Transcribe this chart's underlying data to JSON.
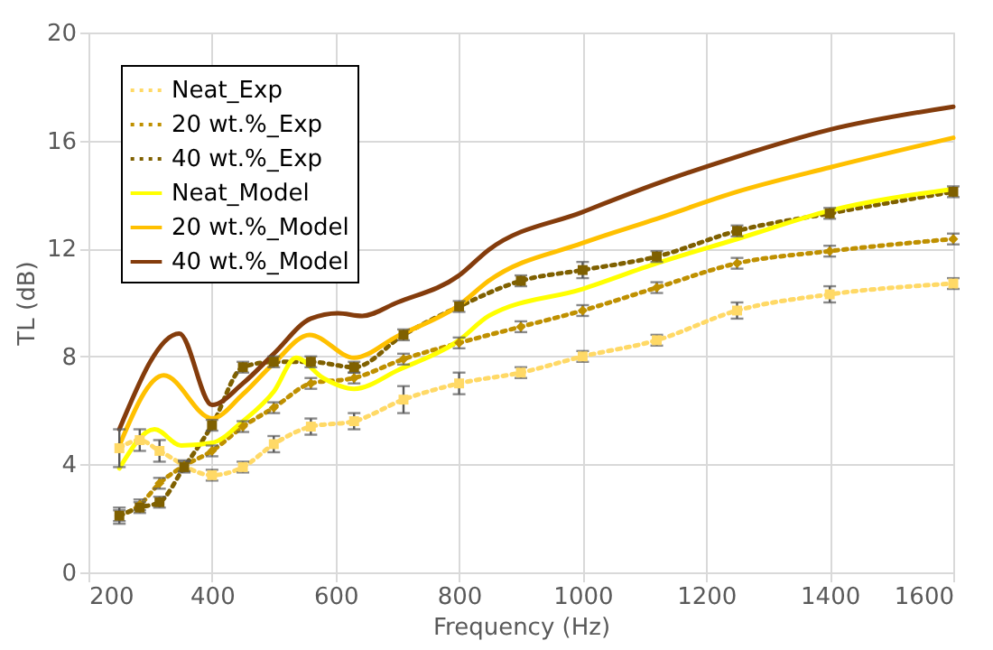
{
  "chart_data": {
    "type": "line",
    "xlabel": "Frequency (Hz)",
    "ylabel": "TL (dB)",
    "xlim": [
      200,
      1600
    ],
    "xticks": [
      200,
      400,
      600,
      800,
      1000,
      1200,
      1400,
      1600
    ],
    "ylim": [
      0,
      20
    ],
    "yticks": [
      0,
      4,
      8,
      12,
      16,
      20
    ],
    "grid": true,
    "legend": "top left",
    "series": [
      {
        "name": "Neat_Exp",
        "color": "#ffd966",
        "line_style": "dotted",
        "marker": "square",
        "x": [
          250,
          283,
          315,
          400,
          450,
          500,
          560,
          630,
          710,
          800,
          900,
          1000,
          1120,
          1250,
          1400,
          1600
        ],
        "values": [
          4.6,
          4.9,
          4.5,
          3.6,
          3.9,
          4.75,
          5.4,
          5.6,
          6.4,
          7.0,
          7.4,
          8.0,
          8.6,
          9.7,
          10.3,
          10.7
        ],
        "errors": [
          0.7,
          0.4,
          0.4,
          0.2,
          0.2,
          0.3,
          0.3,
          0.3,
          0.5,
          0.4,
          0.2,
          0.2,
          0.2,
          0.3,
          0.3,
          0.2
        ]
      },
      {
        "name": "20 wt.%_Exp",
        "color": "#bf9000",
        "line_style": "dotted",
        "marker": "diamond",
        "x": [
          250,
          283,
          315,
          355,
          400,
          450,
          500,
          560,
          630,
          710,
          800,
          900,
          1000,
          1120,
          1250,
          1400,
          1600
        ],
        "values": [
          2.1,
          2.5,
          3.3,
          3.95,
          4.5,
          5.4,
          6.1,
          7.0,
          7.2,
          7.9,
          8.5,
          9.1,
          9.7,
          10.55,
          11.45,
          11.9,
          12.35
        ],
        "errors": [
          0.2,
          0.2,
          0.2,
          0.2,
          0.2,
          0.2,
          0.2,
          0.2,
          0.2,
          0.2,
          0.2,
          0.2,
          0.2,
          0.2,
          0.2,
          0.2,
          0.2
        ]
      },
      {
        "name": "40 wt.%_Exp",
        "color": "#7f6000",
        "line_style": "dotted",
        "marker": "square",
        "x": [
          250,
          283,
          315,
          355,
          400,
          450,
          500,
          560,
          630,
          710,
          800,
          900,
          1000,
          1120,
          1250,
          1400,
          1600
        ],
        "values": [
          2.1,
          2.4,
          2.6,
          3.9,
          5.45,
          7.6,
          7.8,
          7.8,
          7.6,
          8.8,
          9.85,
          10.8,
          11.2,
          11.7,
          12.65,
          13.3,
          14.1
        ],
        "errors": [
          0.3,
          0.2,
          0.2,
          0.2,
          0.2,
          0.2,
          0.2,
          0.2,
          0.2,
          0.2,
          0.2,
          0.2,
          0.3,
          0.2,
          0.2,
          0.2,
          0.2
        ]
      },
      {
        "name": "Neat_Model",
        "color": "#ffff00",
        "line_style": "solid",
        "marker": "none",
        "x": [
          250,
          307,
          350,
          400,
          450,
          500,
          536,
          580,
          630,
          702,
          800,
          848,
          1000,
          1120,
          1250,
          1400,
          1600
        ],
        "values": [
          3.85,
          5.3,
          4.7,
          4.8,
          5.6,
          6.7,
          7.95,
          7.2,
          6.8,
          7.5,
          8.6,
          9.5,
          10.5,
          11.45,
          12.35,
          13.4,
          14.2
        ]
      },
      {
        "name": "20 wt.%_Model",
        "color": "#ffc000",
        "line_style": "solid",
        "marker": "none",
        "x": [
          250,
          322,
          400,
          450,
          500,
          558,
          630,
          700,
          800,
          848,
          1000,
          1120,
          1250,
          1400,
          1600
        ],
        "values": [
          4.7,
          7.3,
          5.7,
          6.6,
          7.75,
          8.8,
          7.95,
          8.75,
          9.9,
          10.8,
          12.2,
          13.1,
          14.1,
          15.0,
          16.1
        ]
      },
      {
        "name": "40 wt.%_Model",
        "color": "#843c0c",
        "line_style": "solid",
        "marker": "none",
        "x": [
          250,
          347,
          400,
          450,
          500,
          560,
          604,
          643,
          700,
          800,
          848,
          1000,
          1120,
          1250,
          1400,
          1600
        ],
        "values": [
          5.3,
          8.85,
          6.2,
          7.0,
          8.1,
          9.4,
          9.6,
          9.5,
          10.0,
          11.0,
          11.95,
          13.35,
          14.4,
          15.4,
          16.4,
          17.25
        ]
      }
    ]
  }
}
